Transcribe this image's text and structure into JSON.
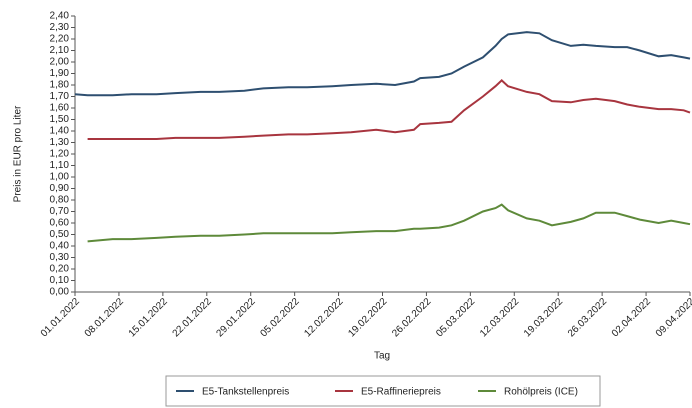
{
  "chart_data": {
    "type": "line",
    "x_label": "Tag",
    "y_label": "Preis in EUR pro Liter",
    "x": [
      "01.01.2022",
      "03.01.2022",
      "07.01.2022",
      "10.01.2022",
      "14.01.2022",
      "17.01.2022",
      "21.01.2022",
      "24.01.2022",
      "28.01.2022",
      "31.01.2022",
      "04.02.2022",
      "07.02.2022",
      "11.02.2022",
      "14.02.2022",
      "18.02.2022",
      "21.02.2022",
      "24.02.2022",
      "25.02.2022",
      "28.02.2022",
      "02.03.2022",
      "04.03.2022",
      "07.03.2022",
      "09.03.2022",
      "10.03.2022",
      "11.03.2022",
      "14.03.2022",
      "16.03.2022",
      "18.03.2022",
      "21.03.2022",
      "23.03.2022",
      "25.03.2022",
      "28.03.2022",
      "30.03.2022",
      "01.04.2022",
      "04.04.2022",
      "06.04.2022",
      "08.04.2022",
      "09.04.2022"
    ],
    "series": [
      {
        "name": "E5-Tankstellenpreis",
        "color": "#2e4f70",
        "values": [
          1.72,
          1.71,
          1.71,
          1.72,
          1.72,
          1.73,
          1.74,
          1.74,
          1.75,
          1.77,
          1.78,
          1.78,
          1.79,
          1.8,
          1.81,
          1.8,
          1.83,
          1.86,
          1.87,
          1.9,
          1.96,
          2.04,
          2.14,
          2.2,
          2.24,
          2.26,
          2.25,
          2.19,
          2.14,
          2.15,
          2.14,
          2.13,
          2.13,
          2.1,
          2.05,
          2.06,
          2.04,
          2.03
        ]
      },
      {
        "name": "E5-Raffineriepreis",
        "color": "#a8353f",
        "values": [
          null,
          1.33,
          1.33,
          1.33,
          1.33,
          1.34,
          1.34,
          1.34,
          1.35,
          1.36,
          1.37,
          1.37,
          1.38,
          1.39,
          1.41,
          1.39,
          1.41,
          1.46,
          1.47,
          1.48,
          1.58,
          1.7,
          1.79,
          1.84,
          1.79,
          1.74,
          1.72,
          1.66,
          1.65,
          1.67,
          1.68,
          1.66,
          1.63,
          1.61,
          1.59,
          1.59,
          1.58,
          1.56
        ]
      },
      {
        "name": "Rohölpreis (ICE)",
        "color": "#5e8a3a",
        "values": [
          null,
          0.44,
          0.46,
          0.46,
          0.47,
          0.48,
          0.49,
          0.49,
          0.5,
          0.51,
          0.51,
          0.51,
          0.51,
          0.52,
          0.53,
          0.53,
          0.55,
          0.55,
          0.56,
          0.58,
          0.62,
          0.7,
          0.73,
          0.76,
          0.71,
          0.64,
          0.62,
          0.58,
          0.61,
          0.64,
          0.69,
          0.69,
          0.66,
          0.63,
          0.6,
          0.62,
          0.6,
          0.59
        ]
      }
    ],
    "xlim": [
      "01.01.2022",
      "09.04.2022"
    ],
    "xticks": [
      "01.01.2022",
      "08.01.2022",
      "15.01.2022",
      "22.01.2022",
      "29.01.2022",
      "05.02.2022",
      "12.02.2022",
      "19.02.2022",
      "26.02.2022",
      "05.03.2022",
      "12.03.2022",
      "19.03.2022",
      "26.03.2022",
      "02.04.2022",
      "09.04.2022"
    ],
    "ylim": [
      0,
      2.4
    ],
    "yticks": [
      {
        "value": 0,
        "label": "0,00"
      },
      {
        "value": 0.1,
        "label": "0,10"
      },
      {
        "value": 0.2,
        "label": "0,20"
      },
      {
        "value": 0.3,
        "label": "0,30"
      },
      {
        "value": 0.4,
        "label": "0,40"
      },
      {
        "value": 0.5,
        "label": "0,50"
      },
      {
        "value": 0.6,
        "label": "0,60"
      },
      {
        "value": 0.7,
        "label": "0,70"
      },
      {
        "value": 0.8,
        "label": "0,80"
      },
      {
        "value": 0.9,
        "label": "0,90"
      },
      {
        "value": 1.0,
        "label": "1,00"
      },
      {
        "value": 1.1,
        "label": "1,10"
      },
      {
        "value": 1.2,
        "label": "1,20"
      },
      {
        "value": 1.3,
        "label": "1,30"
      },
      {
        "value": 1.4,
        "label": "1,40"
      },
      {
        "value": 1.5,
        "label": "1,50"
      },
      {
        "value": 1.6,
        "label": "1,60"
      },
      {
        "value": 1.7,
        "label": "1,70"
      },
      {
        "value": 1.8,
        "label": "1,80"
      },
      {
        "value": 1.9,
        "label": "1,90"
      },
      {
        "value": 2.0,
        "label": "2,00"
      },
      {
        "value": 2.1,
        "label": "2,10"
      },
      {
        "value": 2.2,
        "label": "2,20"
      },
      {
        "value": 2.3,
        "label": "2,30"
      },
      {
        "value": 2.4,
        "label": "2,40"
      }
    ],
    "grid": false,
    "legend": "bottom"
  }
}
